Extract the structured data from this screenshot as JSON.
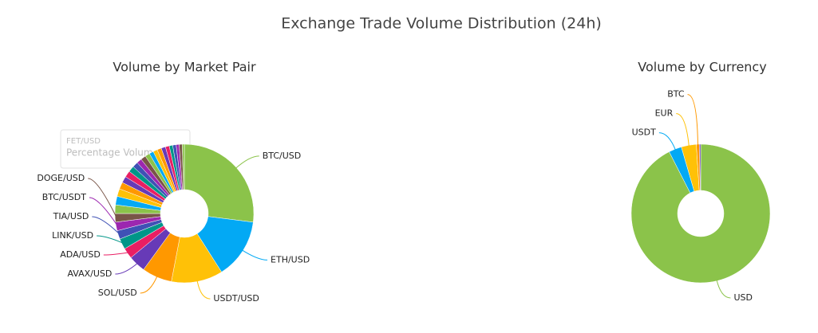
{
  "title": "Exchange Trade Volume Distribution (24h)",
  "tooltip": {
    "title": "FET/USD",
    "text": "Percentage Volume"
  },
  "chart_data": [
    {
      "type": "pie",
      "title": "Volume by Market Pair",
      "categories": [
        "BTC/USD",
        "ETH/USD",
        "USDT/USD",
        "SOL/USD",
        "AVAX/USD",
        "ADA/USD",
        "LINK/USD",
        "TIA/USD",
        "BTC/USDT",
        "DOGE/USD",
        null,
        null,
        null,
        null,
        null,
        null,
        null,
        null,
        null,
        null,
        null,
        null,
        null,
        null,
        null,
        null,
        null,
        null,
        null,
        null,
        null
      ],
      "values": [
        27,
        14,
        12,
        7,
        4,
        2.5,
        2.5,
        2,
        2,
        2,
        2,
        2,
        1.8,
        1.6,
        1.5,
        1.5,
        1.4,
        1.3,
        1.2,
        1.2,
        1.1,
        1,
        1,
        1,
        1,
        0.9,
        0.8,
        0.8,
        0.7,
        0.7,
        0.5
      ],
      "colors": [
        "#8bc34a",
        "#03a9f4",
        "#ffc107",
        "#ff9800",
        "#673ab7",
        "#e91e63",
        "#009688",
        "#3f51b5",
        "#9c27b0",
        "#795548",
        "#8bc34a",
        "#03a9f4",
        "#ffc107",
        "#ff9800",
        "#673ab7",
        "#e91e63",
        "#009688",
        "#3f51b5",
        "#9c27b0",
        "#795548",
        "#8bc34a",
        "#03a9f4",
        "#ffc107",
        "#ff9800",
        "#673ab7",
        "#e91e63",
        "#009688",
        "#3f51b5",
        "#9c27b0",
        "#795548",
        "#8bc34a"
      ]
    },
    {
      "type": "pie",
      "title": "Volume by Currency",
      "categories": [
        "USD",
        "USDT",
        "EUR",
        "BTC",
        null
      ],
      "values": [
        92.5,
        3,
        3.5,
        0.7,
        0.3
      ],
      "colors": [
        "#8bc34a",
        "#03a9f4",
        "#ffc107",
        "#ff9800",
        "#673ab7"
      ]
    }
  ]
}
